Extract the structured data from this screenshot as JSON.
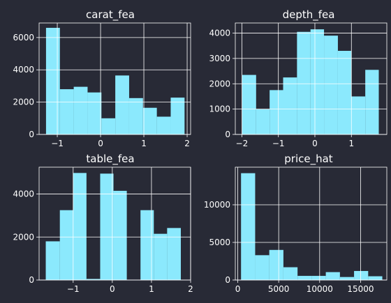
{
  "figure": {
    "background": "#282a36",
    "bar_color": "#8be9fd",
    "text_color": "#ffffff",
    "grid_color": "#ffffff"
  },
  "chart_data": [
    {
      "type": "bar",
      "title": "carat_fea",
      "xlabel": "",
      "ylabel": "",
      "grid": true,
      "xlim": [
        -1.42,
        2.08
      ],
      "ylim": [
        0,
        6900
      ],
      "xticks": [
        -1,
        0,
        1,
        2
      ],
      "xtick_labels": [
        "−1",
        "0",
        "1",
        "2"
      ],
      "yticks": [
        0,
        2000,
        4000,
        6000
      ],
      "ytick_labels": [
        "0",
        "2000",
        "4000",
        "6000"
      ],
      "bins": [
        {
          "x0": -1.26,
          "x1": -0.94,
          "count": 6600
        },
        {
          "x0": -0.94,
          "x1": -0.62,
          "count": 2800
        },
        {
          "x0": -0.62,
          "x1": -0.3,
          "count": 2950
        },
        {
          "x0": -0.3,
          "x1": 0.02,
          "count": 2600
        },
        {
          "x0": 0.02,
          "x1": 0.34,
          "count": 1000
        },
        {
          "x0": 0.34,
          "x1": 0.66,
          "count": 3650
        },
        {
          "x0": 0.66,
          "x1": 0.98,
          "count": 2250
        },
        {
          "x0": 0.98,
          "x1": 1.3,
          "count": 1650
        },
        {
          "x0": 1.3,
          "x1": 1.62,
          "count": 1100
        },
        {
          "x0": 1.62,
          "x1": 1.94,
          "count": 2280
        }
      ]
    },
    {
      "type": "bar",
      "title": "depth_fea",
      "xlabel": "",
      "ylabel": "",
      "grid": true,
      "xlim": [
        -2.18,
        1.97
      ],
      "ylim": [
        0,
        4400
      ],
      "xticks": [
        -2,
        -1,
        0,
        1
      ],
      "xtick_labels": [
        "−2",
        "−1",
        "0",
        "1"
      ],
      "yticks": [
        0,
        1000,
        2000,
        3000,
        4000
      ],
      "ytick_labels": [
        "0",
        "1000",
        "2000",
        "3000",
        "4000"
      ],
      "bins": [
        {
          "x0": -1.99,
          "x1": -1.61,
          "count": 2350
        },
        {
          "x0": -1.61,
          "x1": -1.24,
          "count": 1000
        },
        {
          "x0": -1.24,
          "x1": -0.87,
          "count": 1750
        },
        {
          "x0": -0.87,
          "x1": -0.49,
          "count": 2250
        },
        {
          "x0": -0.49,
          "x1": -0.12,
          "count": 4050
        },
        {
          "x0": -0.12,
          "x1": 0.25,
          "count": 4150
        },
        {
          "x0": 0.25,
          "x1": 0.63,
          "count": 3900
        },
        {
          "x0": 0.63,
          "x1": 1.0,
          "count": 3300
        },
        {
          "x0": 1.0,
          "x1": 1.38,
          "count": 1500
        },
        {
          "x0": 1.38,
          "x1": 1.75,
          "count": 2550
        }
      ]
    },
    {
      "type": "bar",
      "title": "table_fea",
      "xlabel": "",
      "ylabel": "",
      "grid": true,
      "xlim": [
        -1.87,
        2.0
      ],
      "ylim": [
        0,
        5250
      ],
      "xticks": [
        -1,
        0,
        1,
        2
      ],
      "xtick_labels": [
        "−1",
        "0",
        "1",
        "2"
      ],
      "yticks": [
        0,
        2000,
        4000
      ],
      "ytick_labels": [
        "0",
        "2000",
        "4000"
      ],
      "bins": [
        {
          "x0": -1.7,
          "x1": -1.34,
          "count": 1800
        },
        {
          "x0": -1.34,
          "x1": -1.0,
          "count": 3250
        },
        {
          "x0": -1.0,
          "x1": -0.66,
          "count": 4980
        },
        {
          "x0": -0.66,
          "x1": -0.31,
          "count": 50
        },
        {
          "x0": -0.31,
          "x1": 0.03,
          "count": 4950
        },
        {
          "x0": 0.03,
          "x1": 0.37,
          "count": 4150
        },
        {
          "x0": 0.37,
          "x1": 0.72,
          "count": 0
        },
        {
          "x0": 0.72,
          "x1": 1.06,
          "count": 3250
        },
        {
          "x0": 1.06,
          "x1": 1.4,
          "count": 2150
        },
        {
          "x0": 1.4,
          "x1": 1.75,
          "count": 2420
        }
      ]
    },
    {
      "type": "bar",
      "title": "price_hat",
      "xlabel": "",
      "ylabel": "",
      "grid": true,
      "xlim": [
        -300,
        18200
      ],
      "ylim": [
        0,
        15000
      ],
      "xticks": [
        0,
        5000,
        10000,
        15000
      ],
      "xtick_labels": [
        "0",
        "5000",
        "10000",
        "15000"
      ],
      "yticks": [
        0,
        5000,
        10000
      ],
      "ytick_labels": [
        "0",
        "5000",
        "10000"
      ],
      "bins": [
        {
          "x0": 400,
          "x1": 2125,
          "count": 14200
        },
        {
          "x0": 2125,
          "x1": 3850,
          "count": 3300
        },
        {
          "x0": 3850,
          "x1": 5575,
          "count": 4000
        },
        {
          "x0": 5575,
          "x1": 7300,
          "count": 1700
        },
        {
          "x0": 7300,
          "x1": 9025,
          "count": 550
        },
        {
          "x0": 9025,
          "x1": 10750,
          "count": 550
        },
        {
          "x0": 10750,
          "x1": 12475,
          "count": 1050
        },
        {
          "x0": 12475,
          "x1": 14200,
          "count": 400
        },
        {
          "x0": 14200,
          "x1": 15925,
          "count": 1200
        },
        {
          "x0": 15925,
          "x1": 17650,
          "count": 500
        }
      ]
    }
  ]
}
